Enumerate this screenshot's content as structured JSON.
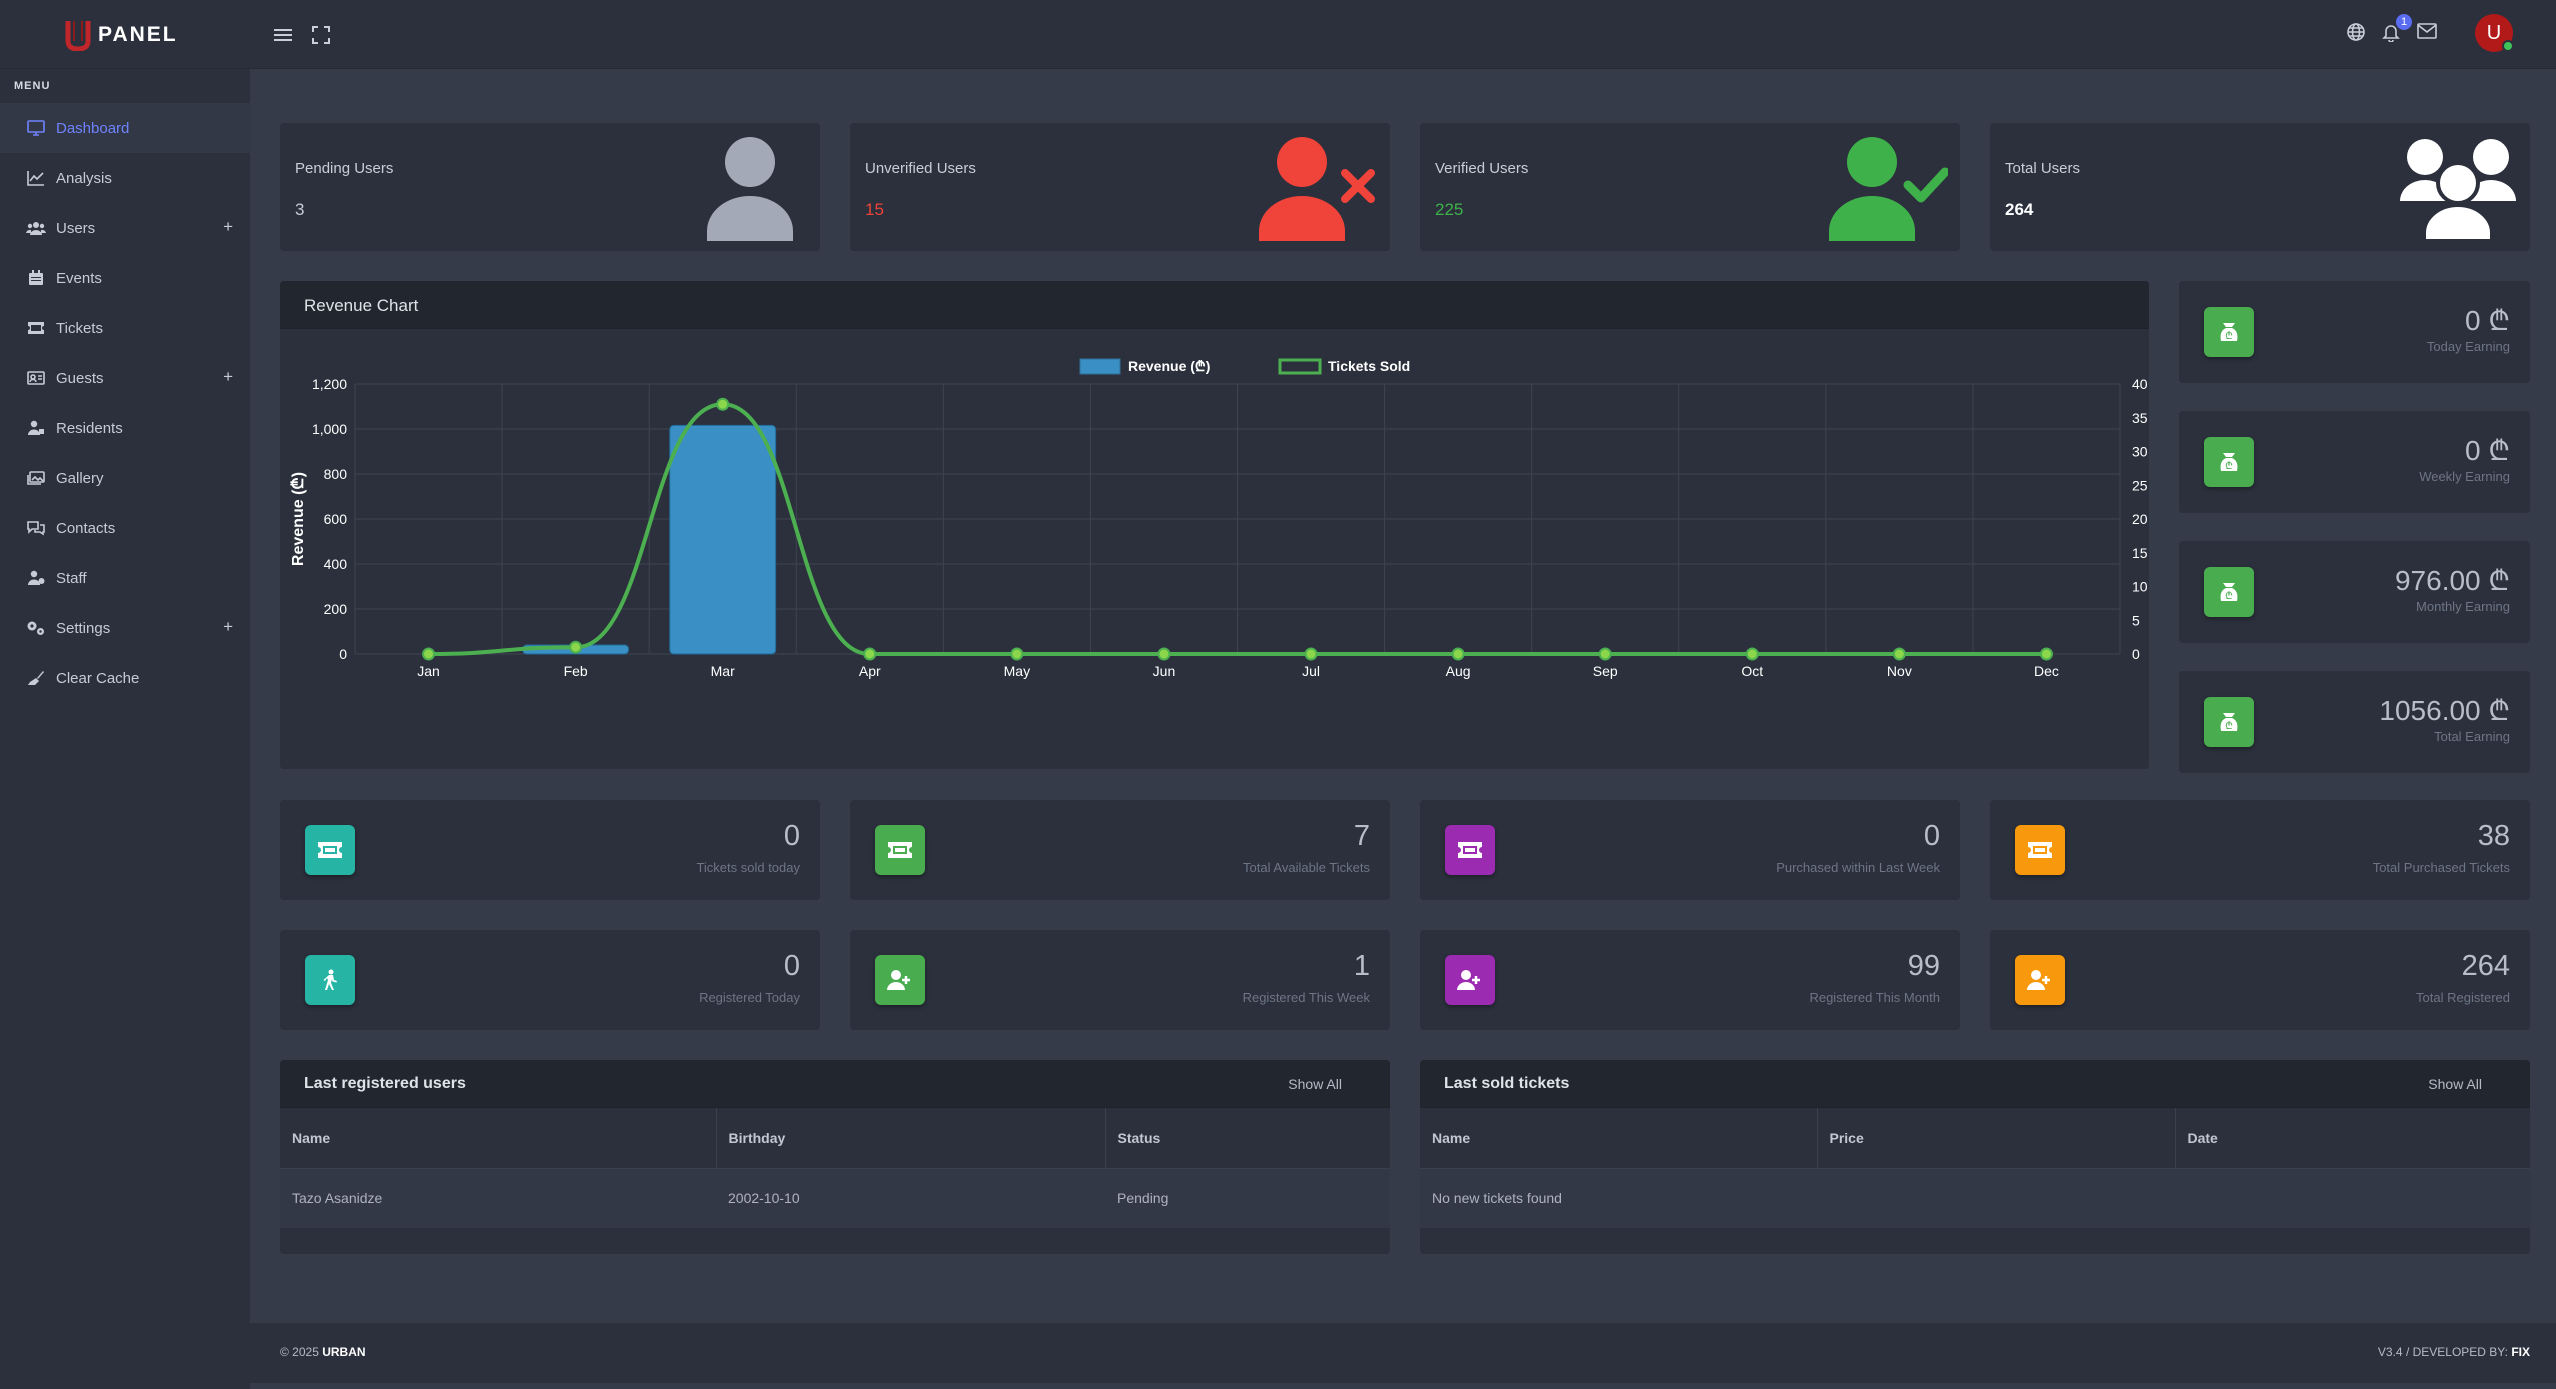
{
  "brand": {
    "logo_text": "PANEL"
  },
  "topbar": {
    "icons": [
      "menu-icon",
      "fullscreen-icon",
      "globe-icon",
      "bell-icon",
      "mail-icon"
    ],
    "notification_count": "1",
    "avatar_letter": "U"
  },
  "sidebar": {
    "menu_title": "MENU",
    "items": [
      {
        "label": "Dashboard",
        "icon": "monitor-icon",
        "active": true
      },
      {
        "label": "Analysis",
        "icon": "line-chart-icon"
      },
      {
        "label": "Users",
        "icon": "users-icon",
        "expandable": true
      },
      {
        "label": "Events",
        "icon": "calendar-icon"
      },
      {
        "label": "Tickets",
        "icon": "ticket-icon"
      },
      {
        "label": "Guests",
        "icon": "id-card-icon",
        "expandable": true
      },
      {
        "label": "Residents",
        "icon": "resident-icon"
      },
      {
        "label": "Gallery",
        "icon": "gallery-icon"
      },
      {
        "label": "Contacts",
        "icon": "contacts-icon"
      },
      {
        "label": "Staff",
        "icon": "staff-icon"
      },
      {
        "label": "Settings",
        "icon": "settings-icon",
        "expandable": true
      },
      {
        "label": "Clear Cache",
        "icon": "broom-icon"
      }
    ],
    "expand_symbol": "+"
  },
  "user_cards": [
    {
      "label": "Pending Users",
      "value": "3",
      "color": "#c5cad6",
      "icon": "user-gray-icon"
    },
    {
      "label": "Unverified Users",
      "value": "15",
      "color": "#f0433a",
      "icon": "user-x-red-icon"
    },
    {
      "label": "Verified Users",
      "value": "225",
      "color": "#3fb14b",
      "icon": "user-check-green-icon"
    },
    {
      "label": "Total Users",
      "value": "264",
      "color": "#ffffff",
      "icon": "users-group-white-icon"
    }
  ],
  "revenue_panel": {
    "title": "Revenue Chart"
  },
  "chart_data": {
    "type": "bar",
    "categories": [
      "Jan",
      "Feb",
      "Mar",
      "Apr",
      "May",
      "Jun",
      "Jul",
      "Aug",
      "Sep",
      "Oct",
      "Nov",
      "Dec"
    ],
    "series": [
      {
        "name": "Revenue (₾)",
        "type": "bar",
        "axis": "left",
        "color": "#3a8fc4",
        "values": [
          0,
          40,
          1016,
          0,
          0,
          0,
          0,
          0,
          0,
          0,
          0,
          0
        ]
      },
      {
        "name": "Tickets Sold",
        "type": "line",
        "axis": "right",
        "color": "#4caf50",
        "values": [
          0,
          1,
          37,
          0,
          0,
          0,
          0,
          0,
          0,
          0,
          0,
          0
        ]
      }
    ],
    "ylabel": "Revenue (₾)",
    "y2label": "Tickets Sold",
    "ylim": [
      0,
      1200
    ],
    "yticks": [
      "0",
      "200",
      "400",
      "600",
      "800",
      "1,000",
      "1,200"
    ],
    "y2lim": [
      0,
      40
    ],
    "y2ticks": [
      "0",
      "5",
      "10",
      "15",
      "20",
      "25",
      "30",
      "35",
      "40"
    ],
    "grid": true,
    "legend": "top-center"
  },
  "earnings": [
    {
      "value": "0",
      "currency": "₾",
      "caption": "Today Earning"
    },
    {
      "value": "0",
      "currency": "₾",
      "caption": "Weekly Earning"
    },
    {
      "value": "976.00",
      "currency": "₾",
      "caption": "Monthly Earning"
    },
    {
      "value": "1056.00",
      "currency": "₾",
      "caption": "Total Earning"
    }
  ],
  "ticket_stats": [
    {
      "value": "0",
      "caption": "Tickets sold today",
      "color": "#26b5a5",
      "icon": "ticket-icon"
    },
    {
      "value": "7",
      "caption": "Total Available Tickets",
      "color": "#49ad4f",
      "icon": "ticket-icon"
    },
    {
      "value": "0",
      "caption": "Purchased within Last Week",
      "color": "#9b2bb0",
      "icon": "ticket-icon"
    },
    {
      "value": "38",
      "caption": "Total Purchased Tickets",
      "color": "#f8980c",
      "icon": "ticket-icon"
    }
  ],
  "register_stats": [
    {
      "value": "0",
      "caption": "Registered Today",
      "color": "#26b5a5",
      "icon": "walking-person-icon"
    },
    {
      "value": "1",
      "caption": "Registered This Week",
      "color": "#49ad4f",
      "icon": "user-plus-icon"
    },
    {
      "value": "99",
      "caption": "Registered This Month",
      "color": "#9b2bb0",
      "icon": "user-plus-icon"
    },
    {
      "value": "264",
      "caption": "Total Registered",
      "color": "#f8980c",
      "icon": "user-plus-icon"
    }
  ],
  "last_users": {
    "title": "Last registered users",
    "show_all": "Show All",
    "columns": [
      "Name",
      "Birthday",
      "Status"
    ],
    "rows": [
      [
        "Tazo Asanidze",
        "2002-10-10",
        "Pending"
      ]
    ]
  },
  "last_tickets": {
    "title": "Last sold tickets",
    "show_all": "Show All",
    "columns": [
      "Name",
      "Price",
      "Date"
    ],
    "empty_text": "No new tickets found"
  },
  "footer": {
    "copyright": "© 2025",
    "brand": "URBAN",
    "version": "V3.4 / DEVELOPED BY:",
    "developer": "FIX"
  }
}
